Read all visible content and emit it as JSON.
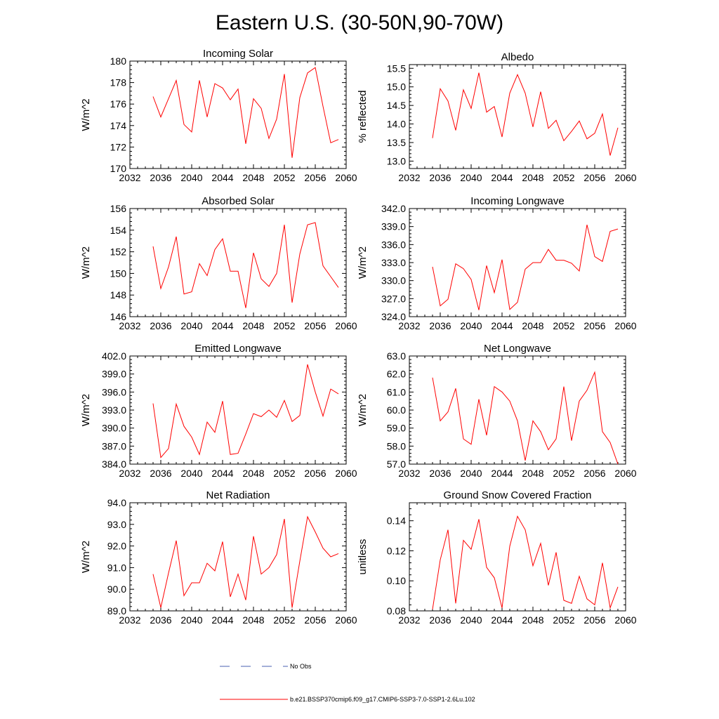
{
  "figure": {
    "title": "Eastern U.S. (30-50N,90-70W)"
  },
  "legend": {
    "entries": [
      {
        "label": "No Obs",
        "color": "#4a5fb0",
        "style": "dashed"
      },
      {
        "label": "b.e21.BSSP370cmip6.f09_g17.CMIP6-SSP3-7.0-SSP1-2.6Lu.102",
        "color": "#ff0000",
        "style": "solid"
      }
    ]
  },
  "chart_data": [
    {
      "type": "line",
      "title": "Incoming Solar",
      "ylabel": "W/m^2",
      "xlim": [
        2032,
        2060
      ],
      "ylim": [
        170,
        180
      ],
      "xticks": [
        "2032",
        "2036",
        "2040",
        "2044",
        "2048",
        "2052",
        "2056",
        "2060"
      ],
      "yticks": [
        "170",
        "172",
        "174",
        "176",
        "178",
        "180"
      ],
      "series": [
        {
          "color": "#ff0000",
          "x": [
            2035,
            2036,
            2037,
            2038,
            2039,
            2040,
            2041,
            2042,
            2043,
            2044,
            2045,
            2046,
            2047,
            2048,
            2049,
            2050,
            2051,
            2052,
            2053,
            2054,
            2055,
            2056,
            2057,
            2058,
            2059
          ],
          "values": [
            176.7,
            174.8,
            176.5,
            178.2,
            174.1,
            173.4,
            178.2,
            174.8,
            177.9,
            177.5,
            176.4,
            177.4,
            172.3,
            176.5,
            175.6,
            172.8,
            174.6,
            178.8,
            171.0,
            176.6,
            178.9,
            179.4,
            175.8,
            172.4,
            172.7
          ]
        }
      ]
    },
    {
      "type": "line",
      "title": "Albedo",
      "ylabel": "% reflected",
      "xlim": [
        2032,
        2060
      ],
      "ylim": [
        12.8,
        15.6
      ],
      "xticks": [
        "2032",
        "2036",
        "2040",
        "2044",
        "2048",
        "2052",
        "2056",
        "2060"
      ],
      "yticks": [
        "13.0",
        "13.5",
        "14.0",
        "14.5",
        "15.0",
        "15.5"
      ],
      "series": [
        {
          "color": "#ff0000",
          "x": [
            2035,
            2036,
            2037,
            2038,
            2039,
            2040,
            2041,
            2042,
            2043,
            2044,
            2045,
            2046,
            2047,
            2048,
            2049,
            2050,
            2051,
            2052,
            2053,
            2054,
            2055,
            2056,
            2057,
            2058,
            2059
          ],
          "values": [
            13.62,
            14.95,
            14.62,
            13.83,
            14.92,
            14.42,
            15.38,
            14.32,
            14.47,
            13.65,
            14.83,
            15.33,
            14.83,
            13.92,
            14.87,
            13.88,
            14.1,
            13.55,
            13.8,
            14.08,
            13.6,
            13.75,
            14.27,
            13.15,
            13.9
          ]
        }
      ]
    },
    {
      "type": "line",
      "title": "Absorbed Solar",
      "ylabel": "W/m^2",
      "xlim": [
        2032,
        2060
      ],
      "ylim": [
        146,
        156
      ],
      "xticks": [
        "2032",
        "2036",
        "2040",
        "2044",
        "2048",
        "2052",
        "2056",
        "2060"
      ],
      "yticks": [
        "146",
        "148",
        "150",
        "152",
        "154",
        "156"
      ],
      "series": [
        {
          "color": "#ff0000",
          "x": [
            2035,
            2036,
            2037,
            2038,
            2039,
            2040,
            2041,
            2042,
            2043,
            2044,
            2045,
            2046,
            2047,
            2048,
            2049,
            2050,
            2051,
            2052,
            2053,
            2054,
            2055,
            2056,
            2057,
            2058,
            2059
          ],
          "values": [
            152.5,
            148.6,
            150.6,
            153.4,
            148.1,
            148.3,
            150.9,
            149.8,
            152.2,
            153.2,
            150.2,
            150.2,
            146.8,
            151.9,
            149.5,
            148.8,
            150.0,
            154.5,
            147.3,
            151.8,
            154.5,
            154.7,
            150.7,
            149.7,
            148.7
          ]
        }
      ]
    },
    {
      "type": "line",
      "title": "Incoming Longwave",
      "ylabel": "W/m^2",
      "xlim": [
        2032,
        2060
      ],
      "ylim": [
        324,
        342
      ],
      "xticks": [
        "2032",
        "2036",
        "2040",
        "2044",
        "2048",
        "2052",
        "2056",
        "2060"
      ],
      "yticks": [
        "324.0",
        "327.0",
        "330.0",
        "333.0",
        "336.0",
        "339.0",
        "342.0"
      ],
      "series": [
        {
          "color": "#ff0000",
          "x": [
            2035,
            2036,
            2037,
            2038,
            2039,
            2040,
            2041,
            2042,
            2043,
            2044,
            2045,
            2046,
            2047,
            2048,
            2049,
            2050,
            2051,
            2052,
            2053,
            2054,
            2055,
            2056,
            2057,
            2058,
            2059
          ],
          "values": [
            332.3,
            325.8,
            326.9,
            332.8,
            332.0,
            330.2,
            325.1,
            332.5,
            328.0,
            333.5,
            325.2,
            326.4,
            331.9,
            333.0,
            333.0,
            335.2,
            333.4,
            333.4,
            332.9,
            331.6,
            339.3,
            334.0,
            333.2,
            338.2,
            338.6
          ]
        }
      ]
    },
    {
      "type": "line",
      "title": "Emitted Longwave",
      "ylabel": "W/m^2",
      "xlim": [
        2032,
        2060
      ],
      "ylim": [
        384,
        402
      ],
      "xticks": [
        "2032",
        "2036",
        "2040",
        "2044",
        "2048",
        "2052",
        "2056",
        "2060"
      ],
      "yticks": [
        "384.0",
        "387.0",
        "390.0",
        "393.0",
        "396.0",
        "399.0",
        "402.0"
      ],
      "series": [
        {
          "color": "#ff0000",
          "x": [
            2035,
            2036,
            2037,
            2038,
            2039,
            2040,
            2041,
            2042,
            2043,
            2044,
            2045,
            2046,
            2047,
            2048,
            2049,
            2050,
            2051,
            2052,
            2053,
            2054,
            2055,
            2056,
            2057,
            2058,
            2059
          ],
          "values": [
            394.1,
            385.1,
            386.6,
            394.0,
            390.3,
            388.5,
            385.6,
            391.0,
            389.3,
            394.5,
            385.6,
            385.8,
            389.0,
            392.4,
            391.9,
            393.0,
            391.8,
            394.6,
            391.1,
            392.1,
            400.6,
            396.0,
            392.0,
            396.5,
            395.7
          ]
        }
      ]
    },
    {
      "type": "line",
      "title": "Net Longwave",
      "ylabel": "W/m^2",
      "xlim": [
        2032,
        2060
      ],
      "ylim": [
        57,
        63
      ],
      "xticks": [
        "2032",
        "2036",
        "2040",
        "2044",
        "2048",
        "2052",
        "2056",
        "2060"
      ],
      "yticks": [
        "57.0",
        "58.0",
        "59.0",
        "60.0",
        "61.0",
        "62.0",
        "63.0"
      ],
      "series": [
        {
          "color": "#ff0000",
          "x": [
            2035,
            2036,
            2037,
            2038,
            2039,
            2040,
            2041,
            2042,
            2043,
            2044,
            2045,
            2046,
            2047,
            2048,
            2049,
            2050,
            2051,
            2052,
            2053,
            2054,
            2055,
            2056,
            2057,
            2058,
            2059
          ],
          "values": [
            61.8,
            59.4,
            59.9,
            61.2,
            58.4,
            58.1,
            60.6,
            58.6,
            61.3,
            61.0,
            60.5,
            59.4,
            57.2,
            59.4,
            58.8,
            57.8,
            58.4,
            61.3,
            58.3,
            60.5,
            61.1,
            62.1,
            58.8,
            58.2,
            57.0
          ]
        }
      ]
    },
    {
      "type": "line",
      "title": "Net Radiation",
      "ylabel": "W/m^2",
      "xlim": [
        2032,
        2060
      ],
      "ylim": [
        89,
        94
      ],
      "xticks": [
        "2032",
        "2036",
        "2040",
        "2044",
        "2048",
        "2052",
        "2056",
        "2060"
      ],
      "yticks": [
        "89.0",
        "90.0",
        "91.0",
        "92.0",
        "93.0",
        "94.0"
      ],
      "series": [
        {
          "color": "#ff0000",
          "x": [
            2035,
            2036,
            2037,
            2038,
            2039,
            2040,
            2041,
            2042,
            2043,
            2044,
            2045,
            2046,
            2047,
            2048,
            2049,
            2050,
            2051,
            2052,
            2053,
            2054,
            2055,
            2056,
            2057,
            2058,
            2059
          ],
          "values": [
            90.7,
            89.15,
            90.75,
            92.25,
            89.7,
            90.3,
            90.3,
            91.2,
            90.85,
            92.2,
            89.65,
            90.7,
            89.5,
            92.45,
            90.7,
            91.0,
            91.6,
            93.25,
            89.15,
            91.3,
            93.35,
            92.65,
            91.9,
            91.5,
            91.65
          ]
        }
      ]
    },
    {
      "type": "line",
      "title": "Ground Snow Covered Fraction",
      "ylabel": "unitless",
      "xlim": [
        2032,
        2060
      ],
      "ylim": [
        0.08,
        0.152
      ],
      "xticks": [
        "2032",
        "2036",
        "2040",
        "2044",
        "2048",
        "2052",
        "2056",
        "2060"
      ],
      "yticks": [
        "0.08",
        "0.10",
        "0.12",
        "0.14"
      ],
      "series": [
        {
          "color": "#ff0000",
          "x": [
            2035,
            2036,
            2037,
            2038,
            2039,
            2040,
            2041,
            2042,
            2043,
            2044,
            2045,
            2046,
            2047,
            2048,
            2049,
            2050,
            2051,
            2052,
            2053,
            2054,
            2055,
            2056,
            2057,
            2058,
            2059
          ],
          "values": [
            0.081,
            0.114,
            0.134,
            0.085,
            0.127,
            0.121,
            0.141,
            0.109,
            0.102,
            0.082,
            0.123,
            0.143,
            0.134,
            0.11,
            0.125,
            0.097,
            0.119,
            0.087,
            0.085,
            0.103,
            0.088,
            0.084,
            0.112,
            0.082,
            0.096
          ]
        }
      ]
    }
  ]
}
